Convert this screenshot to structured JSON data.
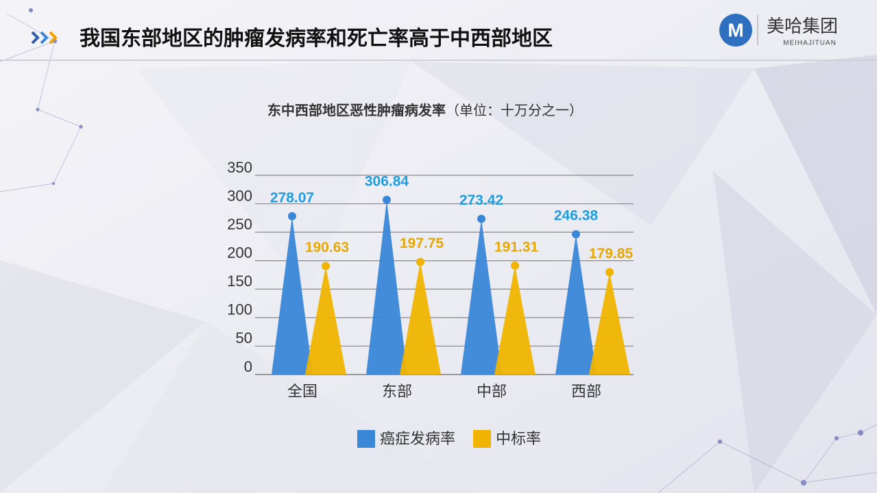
{
  "header": {
    "title": "我国东部地区的肿瘤发病率和死亡率高于中西部地区",
    "logo_name": "美哈集团",
    "logo_sub": "MEIHAJITUAN"
  },
  "chart_data": {
    "type": "bar",
    "title": "东中西部地区恶性肿瘤病发率",
    "unit": "（单位：十万分之一）",
    "categories": [
      "全国",
      "东部",
      "中部",
      "西部"
    ],
    "series": [
      {
        "name": "癌症发病率",
        "color": "#3a87d8",
        "label_color": "#1e9de0",
        "values": [
          278.07,
          306.84,
          273.42,
          246.38
        ]
      },
      {
        "name": "中标率",
        "color": "#f0b400",
        "label_color": "#e6a800",
        "values": [
          190.63,
          197.75,
          191.31,
          179.85
        ]
      }
    ],
    "ylim": [
      0,
      350
    ],
    "yticks": [
      0,
      50,
      100,
      150,
      200,
      250,
      300,
      350
    ],
    "grid": true,
    "legend": "bottom"
  }
}
